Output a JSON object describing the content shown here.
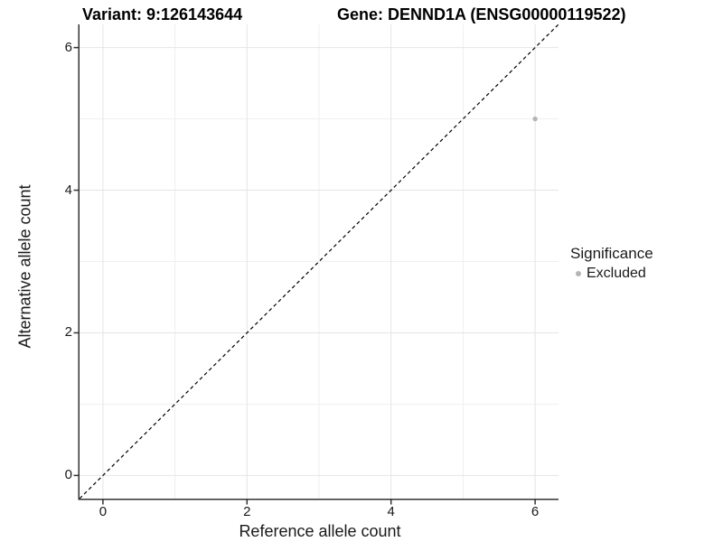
{
  "titles": {
    "variant": "Variant: 9:126143644",
    "gene": "Gene: DENND1A (ENSG00000119522)"
  },
  "chart_data": {
    "type": "scatter",
    "xlabel": "Reference allele count",
    "ylabel": "Alternative allele count",
    "xlim": [
      -0.325,
      6.325
    ],
    "ylim": [
      -0.325,
      6.325
    ],
    "x_ticks": [
      0,
      2,
      4,
      6
    ],
    "y_ticks": [
      0,
      2,
      4,
      6
    ],
    "minor_gridlines": [
      1,
      3,
      5
    ],
    "grid": true,
    "points": [
      {
        "x": 6,
        "y": 5,
        "series": "Excluded"
      }
    ],
    "identity_line": {
      "style": "dashed",
      "from": [
        -0.325,
        -0.325
      ],
      "to": [
        6.325,
        6.325
      ]
    },
    "legend": {
      "title": "Significance",
      "position": "right",
      "items": [
        {
          "label": "Excluded",
          "color": "#b5b5b5"
        }
      ]
    }
  },
  "colors": {
    "point": "#b5b5b5",
    "grid_major": "#e4e4e4",
    "grid_minor": "#efefef",
    "axis_line": "#333333",
    "identity_line": "#000000",
    "background": "#ffffff"
  }
}
